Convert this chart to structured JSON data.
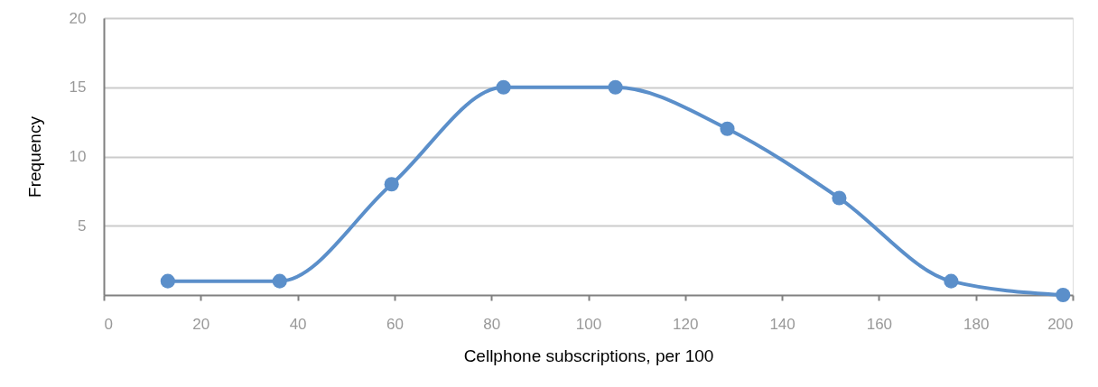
{
  "chart_data": {
    "type": "line",
    "xlabel": "Cellphone subscriptions, per 100",
    "ylabel": "Frequency",
    "x": [
      13.2,
      36.3,
      59.4,
      82.5,
      105.6,
      128.7,
      151.8,
      174.9,
      198
    ],
    "series": [
      {
        "color": "#5b8fca",
        "values": [
          1,
          1,
          8,
          15,
          15,
          12,
          7,
          1,
          0
        ]
      }
    ],
    "xlim": [
      0,
      200
    ],
    "xticks": [
      0,
      20,
      40,
      60,
      80,
      100,
      120,
      140,
      160,
      180,
      200
    ],
    "ylim": [
      0,
      20
    ],
    "yticks": [
      5,
      10,
      15,
      20
    ],
    "grid": "y",
    "marker": "circle",
    "line_style": "solid"
  }
}
